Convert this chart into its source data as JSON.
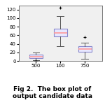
{
  "title": "Fig 2.  The box plot of\noutput candidate data",
  "categories": [
    "500",
    "100",
    "750"
  ],
  "box_data": [
    {
      "label": "500",
      "whislo": 1,
      "q1": 7,
      "med": 10,
      "q3": 14,
      "whishi": 19,
      "fliers_lo": [
        0,
        0.3
      ],
      "fliers_hi": []
    },
    {
      "label": "100",
      "whislo": 35,
      "q1": 58,
      "med": 65,
      "q3": 75,
      "whishi": 105,
      "fliers_lo": [],
      "fliers_hi": [
        125
      ]
    },
    {
      "label": "750",
      "whislo": 5,
      "q1": 22,
      "med": 28,
      "q3": 35,
      "whishi": 43,
      "fliers_lo": [],
      "fliers_hi": [
        55
      ]
    }
  ],
  "ylim": [
    0,
    130
  ],
  "yticks": [
    0,
    20,
    40,
    60,
    80,
    100,
    120
  ],
  "box_facecolor": "#e8e8ff",
  "box_edgecolor": "#8888cc",
  "median_color": "#ff9999",
  "flier_color": "#ff2222",
  "whisker_color": "#555555",
  "cap_color": "#555555",
  "bg_color": "#f0f0f0",
  "title_fontsize": 6.5,
  "tick_fontsize": 5
}
